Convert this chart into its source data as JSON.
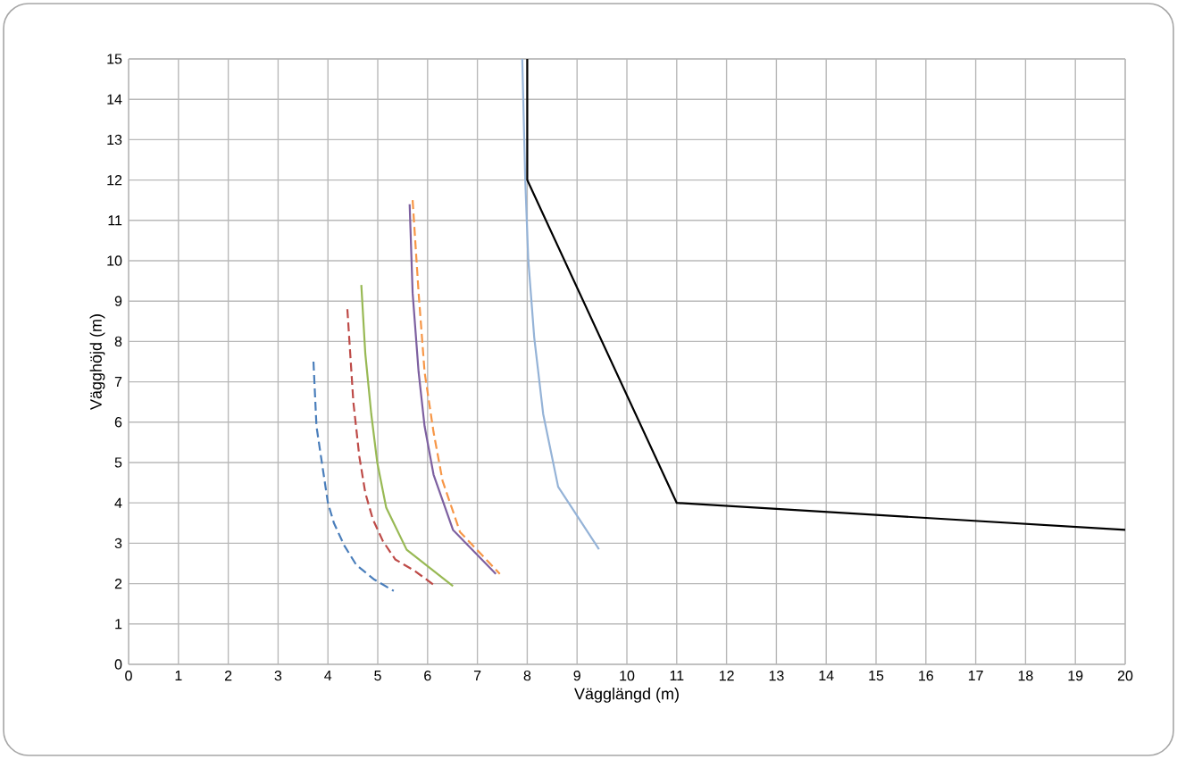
{
  "chart_data": {
    "type": "line",
    "xlabel": "Vägglängd (m)",
    "ylabel": "Vägghöjd (m)",
    "xlim": [
      0,
      20
    ],
    "ylim": [
      0,
      15
    ],
    "xticks": [
      0,
      1,
      2,
      3,
      4,
      5,
      6,
      7,
      8,
      9,
      10,
      11,
      12,
      13,
      14,
      15,
      16,
      17,
      18,
      19,
      20
    ],
    "yticks": [
      0,
      1,
      2,
      3,
      4,
      5,
      6,
      7,
      8,
      9,
      10,
      11,
      12,
      13,
      14,
      15
    ],
    "grid": true,
    "marker": "none",
    "series": [
      {
        "color": "#4a7ebb",
        "line_style": "dashed",
        "x": [
          3.71,
          3.77,
          3.86,
          4.0,
          4.12,
          4.33,
          4.57,
          4.93,
          5.32
        ],
        "values": [
          7.5,
          5.9,
          5.15,
          4.0,
          3.5,
          2.94,
          2.46,
          2.1,
          1.82
        ]
      },
      {
        "color": "#be4b48",
        "line_style": "dashed",
        "x": [
          4.39,
          4.51,
          4.63,
          4.75,
          4.9,
          5.1,
          5.35,
          5.76,
          6.12
        ],
        "values": [
          8.8,
          6.5,
          5.15,
          4.25,
          3.6,
          3.06,
          2.6,
          2.3,
          1.97
        ]
      },
      {
        "color": "#98b954",
        "line_style": "solid",
        "x": [
          4.67,
          4.75,
          4.87,
          4.99,
          5.17,
          5.58,
          6.51
        ],
        "values": [
          9.4,
          7.7,
          6.2,
          5.0,
          3.88,
          2.84,
          1.94
        ]
      },
      {
        "color": "#7d60a0",
        "line_style": "solid",
        "x": [
          5.64,
          5.7,
          5.82,
          5.94,
          6.12,
          6.51,
          7.37
        ],
        "values": [
          11.4,
          9.2,
          7.24,
          5.9,
          4.7,
          3.33,
          2.24
        ]
      },
      {
        "color": "#f79646",
        "line_style": "dashed",
        "x": [
          5.7,
          5.82,
          5.94,
          6.12,
          6.3,
          6.65,
          7.45
        ],
        "values": [
          11.5,
          9.2,
          7.24,
          5.75,
          4.55,
          3.28,
          2.24
        ]
      },
      {
        "color": "#95b3d7",
        "line_style": "solid",
        "x": [
          7.9,
          7.96,
          8.02,
          8.14,
          8.32,
          8.62,
          9.44
        ],
        "values": [
          15,
          12,
          10.04,
          8.1,
          6.2,
          4.4,
          2.85
        ]
      },
      {
        "color": "#000000",
        "line_style": "solid",
        "x": [
          8,
          8,
          11,
          20
        ],
        "values": [
          15,
          12,
          4,
          3.33
        ]
      }
    ]
  }
}
